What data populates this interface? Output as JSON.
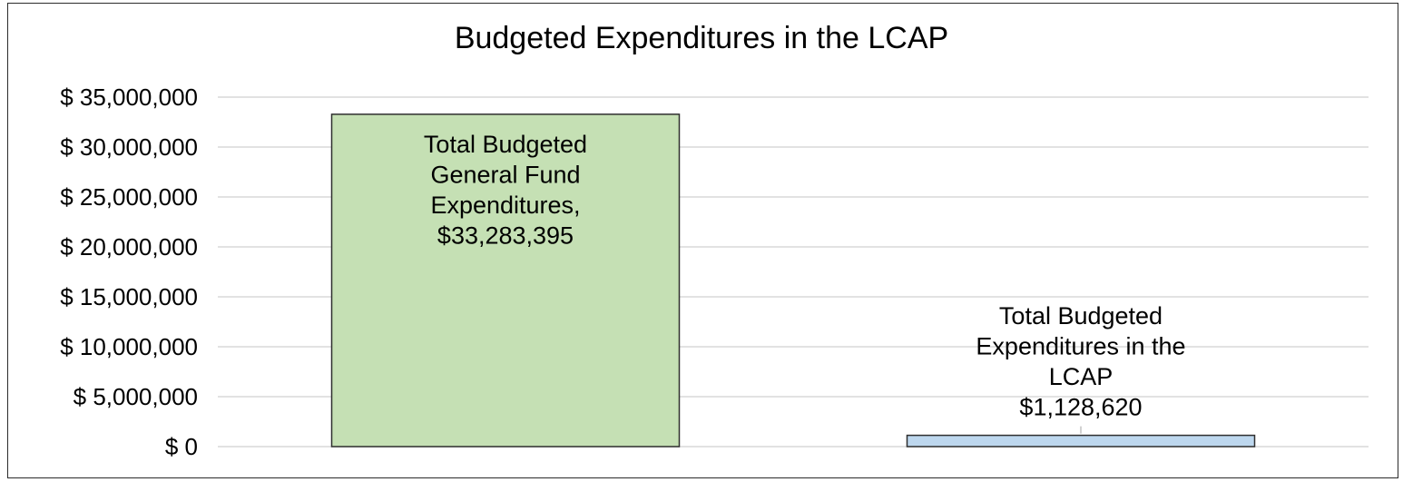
{
  "chart_data": {
    "type": "bar",
    "title": "Budgeted Expenditures in the LCAP",
    "categories": [
      "Total Budgeted General Fund Expenditures",
      "Total Budgeted Expenditures in the LCAP"
    ],
    "values": [
      33283395,
      1128620
    ],
    "data_labels": [
      [
        "Total Budgeted",
        "General Fund",
        "Expenditures,",
        "$33,283,395"
      ],
      [
        "Total Budgeted",
        "Expenditures in the",
        "LCAP",
        "$1,128,620"
      ]
    ],
    "bar_colors": [
      "#c5e0b4",
      "#bdd7ee"
    ],
    "bar_border_color": "#2f2f2f",
    "ylim": [
      0,
      35000000
    ],
    "yticks": [
      0,
      5000000,
      10000000,
      15000000,
      20000000,
      25000000,
      30000000,
      35000000
    ],
    "ytick_labels": [
      "$ 0",
      "$ 5,000,000",
      "$ 10,000,000",
      "$ 15,000,000",
      "$ 20,000,000",
      "$ 25,000,000",
      "$ 30,000,000",
      "$ 35,000,000"
    ],
    "xlabel": "",
    "ylabel": "",
    "grid": true,
    "legend": "none"
  }
}
